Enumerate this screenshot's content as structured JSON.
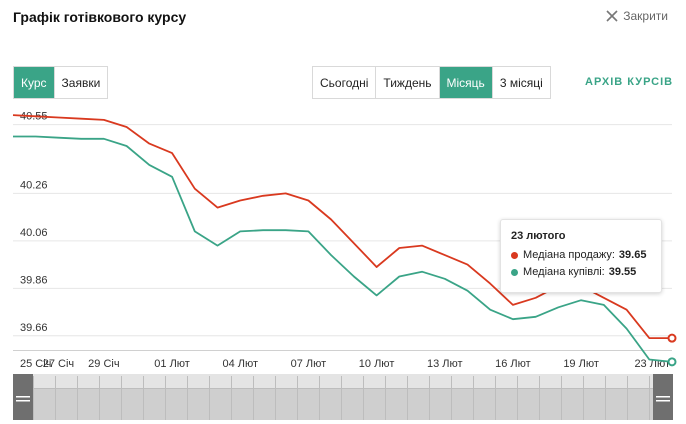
{
  "header": {
    "title": "Графік готівкового курсу",
    "close_label": "Закрити"
  },
  "view_tabs": [
    {
      "label": "Курс",
      "active": true
    },
    {
      "label": "Заявки",
      "active": false
    }
  ],
  "period_tabs": [
    {
      "label": "Сьогодні",
      "active": false
    },
    {
      "label": "Тиждень",
      "active": false
    },
    {
      "label": "Місяць",
      "active": true
    },
    {
      "label": "3 місяці",
      "active": false
    }
  ],
  "archive_link": "АРХІВ КУРСІВ",
  "colors": {
    "accent": "#3aa487",
    "sell": "#d9391f",
    "buy": "#3aa487"
  },
  "tooltip": {
    "date": "23 лютого",
    "rows": [
      {
        "label": "Медіана продажу:",
        "value": "39.65",
        "color": "#d9391f"
      },
      {
        "label": "Медіана купівлі:",
        "value": "39.55",
        "color": "#3aa487"
      }
    ]
  },
  "chart_data": {
    "type": "line",
    "x": [
      "25 Січ",
      "26 Січ",
      "27 Січ",
      "28 Січ",
      "29 Січ",
      "30 Січ",
      "31 Січ",
      "01 Лют",
      "02 Лют",
      "03 Лют",
      "04 Лют",
      "05 Лют",
      "06 Лют",
      "07 Лют",
      "08 Лют",
      "09 Лют",
      "10 Лют",
      "11 Лют",
      "12 Лют",
      "13 Лют",
      "14 Лют",
      "15 Лют",
      "16 Лют",
      "17 Лют",
      "18 Лют",
      "19 Лют",
      "20 Лют",
      "21 Лют",
      "22 Лют",
      "23 Лют"
    ],
    "x_tick_labels": [
      "25 Січ",
      "27 Січ",
      "29 Січ",
      "01 Лют",
      "04 Лют",
      "07 Лют",
      "10 Лют",
      "13 Лют",
      "16 Лют",
      "19 Лют",
      "23 Лют"
    ],
    "x_tick_indices": [
      0,
      2,
      4,
      7,
      10,
      13,
      16,
      19,
      22,
      25,
      29
    ],
    "y_ticks": [
      40.55,
      40.26,
      40.06,
      39.86,
      39.66
    ],
    "ylim": [
      39.6,
      40.62
    ],
    "grid": true,
    "series": [
      {
        "name": "Медіана продажу",
        "color": "#d9391f",
        "values": [
          40.59,
          40.585,
          40.58,
          40.575,
          40.57,
          40.54,
          40.47,
          40.43,
          40.28,
          40.2,
          40.23,
          40.25,
          40.26,
          40.23,
          40.15,
          40.05,
          39.95,
          40.03,
          40.04,
          40.0,
          39.96,
          39.88,
          39.79,
          39.82,
          39.87,
          39.87,
          39.82,
          39.77,
          39.65,
          39.65
        ]
      },
      {
        "name": "Медіана купівлі",
        "color": "#3aa487",
        "values": [
          40.5,
          40.5,
          40.495,
          40.49,
          40.49,
          40.46,
          40.38,
          40.33,
          40.1,
          40.04,
          40.1,
          40.105,
          40.105,
          40.1,
          40.0,
          39.91,
          39.83,
          39.91,
          39.93,
          39.9,
          39.85,
          39.77,
          39.73,
          39.74,
          39.78,
          39.81,
          39.79,
          39.69,
          39.56,
          39.55
        ]
      }
    ]
  }
}
